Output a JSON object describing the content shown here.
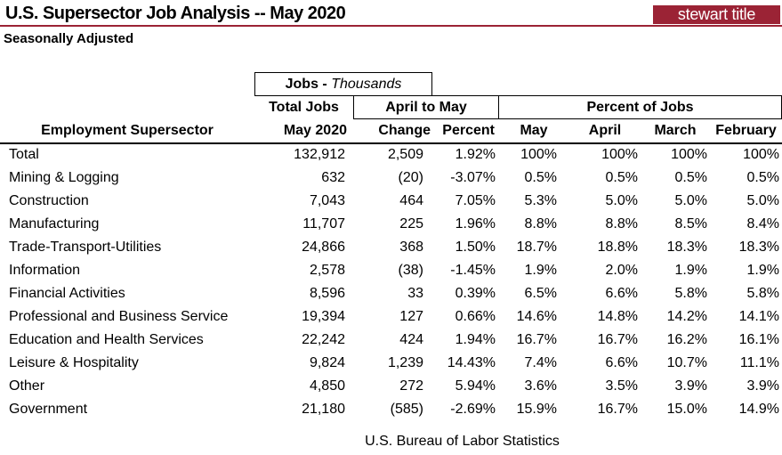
{
  "title": "U.S.  Supersector Job Analysis -- May 2020",
  "logo_text": "stewart title",
  "subtitle": "Seasonally Adjusted",
  "header": {
    "jobs_bold": "Jobs -",
    "jobs_italic": "Thousands",
    "total_jobs": "Total Jobs",
    "april_to_may": "April to May",
    "percent_of_jobs": "Percent of Jobs",
    "sector": "Employment Supersector",
    "may2020": "May 2020",
    "change": "Change",
    "percent": "Percent",
    "may": "May",
    "april": "April",
    "march": "March",
    "february": "February"
  },
  "rows": [
    [
      "Total",
      "132,912",
      "2,509",
      "1.92%",
      "100%",
      "100%",
      "100%",
      "100%"
    ],
    [
      "Mining & Logging",
      "632",
      "(20)",
      "-3.07%",
      "0.5%",
      "0.5%",
      "0.5%",
      "0.5%"
    ],
    [
      "Construction",
      "7,043",
      "464",
      "7.05%",
      "5.3%",
      "5.0%",
      "5.0%",
      "5.0%"
    ],
    [
      "Manufacturing",
      "11,707",
      "225",
      "1.96%",
      "8.8%",
      "8.8%",
      "8.5%",
      "8.4%"
    ],
    [
      "Trade-Transport-Utilities",
      "24,866",
      "368",
      "1.50%",
      "18.7%",
      "18.8%",
      "18.3%",
      "18.3%"
    ],
    [
      "Information",
      "2,578",
      "(38)",
      "-1.45%",
      "1.9%",
      "2.0%",
      "1.9%",
      "1.9%"
    ],
    [
      "Financial Activities",
      "8,596",
      "33",
      "0.39%",
      "6.5%",
      "6.6%",
      "5.8%",
      "5.8%"
    ],
    [
      "Professional and Business Service",
      "19,394",
      "127",
      "0.66%",
      "14.6%",
      "14.8%",
      "14.2%",
      "14.1%"
    ],
    [
      "Education and Health Services",
      "22,242",
      "424",
      "1.94%",
      "16.7%",
      "16.7%",
      "16.2%",
      "16.1%"
    ],
    [
      "Leisure & Hospitality",
      "9,824",
      "1,239",
      "14.43%",
      "7.4%",
      "6.6%",
      "10.7%",
      "11.1%"
    ],
    [
      "Other",
      "4,850",
      "272",
      "5.94%",
      "3.6%",
      "3.5%",
      "3.9%",
      "3.9%"
    ],
    [
      "Government",
      "21,180",
      "(585)",
      "-2.69%",
      "15.9%",
      "16.7%",
      "15.0%",
      "14.9%"
    ]
  ],
  "footer": "U.S. Bureau of Labor Statistics"
}
